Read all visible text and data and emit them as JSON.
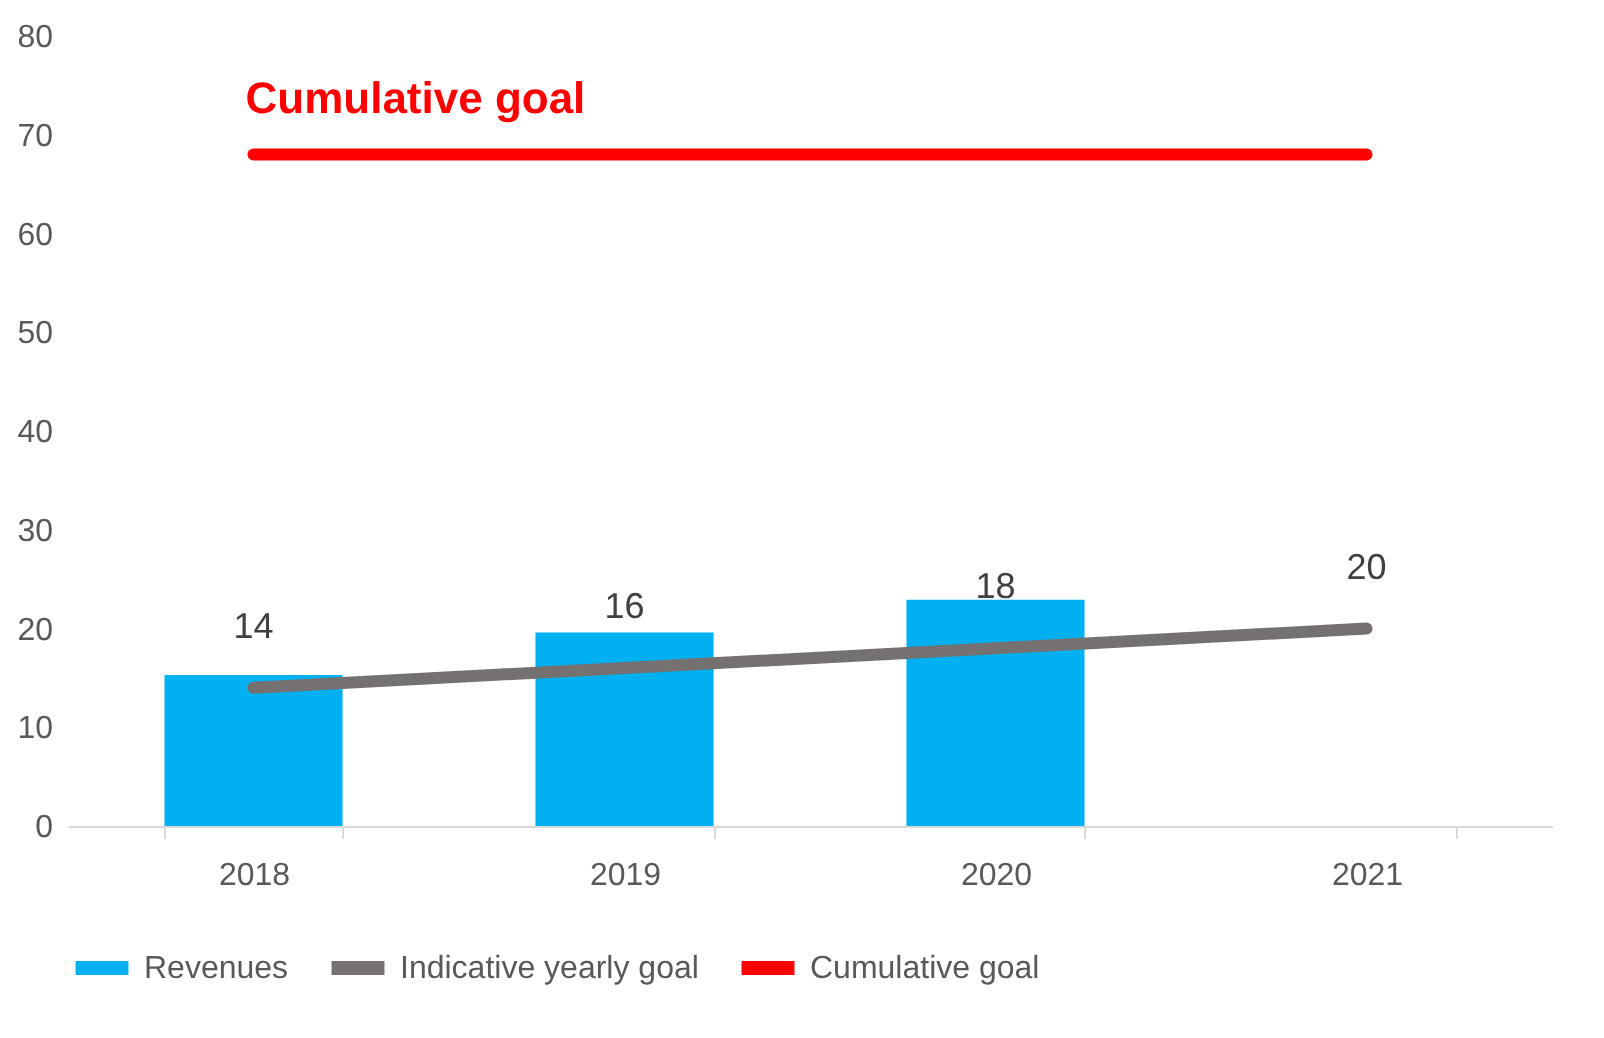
{
  "chart_data": {
    "type": "bar",
    "categories": [
      "2018",
      "2019",
      "2020",
      "2021"
    ],
    "series": [
      {
        "name": "Revenues",
        "color": "#00b0f0",
        "values": [
          15.3,
          19.6,
          22.9,
          null
        ]
      },
      {
        "name": "Indicative yearly goal",
        "type": "line",
        "color": "#767171",
        "values": [
          14,
          16,
          18,
          20
        ],
        "value_labels": [
          "14",
          "16",
          "18",
          "20"
        ]
      },
      {
        "name": "Cumulative goal",
        "type": "line",
        "color": "#ff0000",
        "values": [
          68,
          68,
          68,
          68
        ]
      }
    ],
    "annotations": [
      {
        "text": "Cumulative goal",
        "x": "2018",
        "y": 68
      }
    ],
    "ylim": [
      0,
      80
    ],
    "yticks": [
      0,
      10,
      20,
      30,
      40,
      50,
      60,
      70,
      80
    ],
    "grid": false,
    "legend": "bottom"
  }
}
